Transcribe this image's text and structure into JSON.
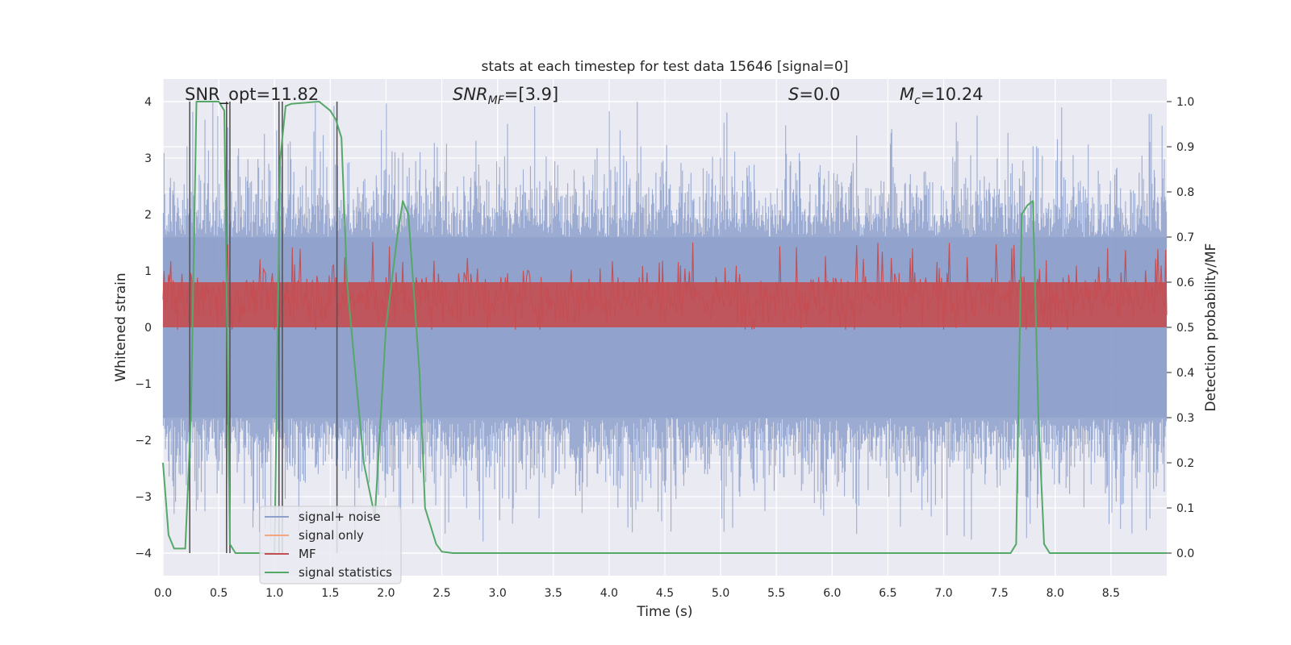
{
  "chart_data": {
    "type": "line",
    "title": "stats at each timestep for test data 15646 [signal=0]",
    "xlabel": "Time (s)",
    "ylabel_left": "Whitened strain",
    "ylabel_right": "Detection probability/MF",
    "xlim": [
      0,
      9.0
    ],
    "ylim_left": [
      -4.4,
      4.4
    ],
    "ylim_right": [
      -0.05,
      1.05
    ],
    "grid": true,
    "x_ticks": [
      "0.0",
      "0.5",
      "1.0",
      "1.5",
      "2.0",
      "2.5",
      "3.0",
      "3.5",
      "4.0",
      "4.5",
      "5.0",
      "5.5",
      "6.0",
      "6.5",
      "7.0",
      "7.5",
      "8.0",
      "8.5"
    ],
    "y_left_ticks": [
      "4",
      "3",
      "2",
      "1",
      "0",
      "−1",
      "−2",
      "−3",
      "−4"
    ],
    "y_right_ticks": [
      "1.0",
      "0.9",
      "0.8",
      "0.7",
      "0.6",
      "0.5",
      "0.4",
      "0.3",
      "0.2",
      "0.1",
      "0.0"
    ],
    "annotations": {
      "snr_opt": "SNR_opt=11.82",
      "snr_mf_main": "SNR",
      "snr_mf_sub": "MF",
      "snr_mf_value": "=[3.9]",
      "s_main": "S",
      "s_value": "=0.0",
      "mc_main": "M",
      "mc_sub": "c",
      "mc_value": "=10.24"
    },
    "legend": {
      "placement": "lower-left",
      "entries": [
        {
          "label": "signal+ noise",
          "color": "#8da0cb"
        },
        {
          "label": "signal only",
          "color": "#f4a582"
        },
        {
          "label": "MF",
          "color": "#c44e52"
        },
        {
          "label": "signal statistics",
          "color": "#55a868"
        }
      ]
    },
    "series": [
      {
        "name": "signal+ noise",
        "axis": "left",
        "description_kind": "dense noise trace",
        "amplitude_core": 1.6,
        "amplitude_peak_max": 4.0,
        "amplitude_peak_min": -3.8
      },
      {
        "name": "MF",
        "axis": "right",
        "band_low": 0.5,
        "band_high": 0.63
      },
      {
        "name": "signal statistics",
        "axis": "right",
        "x": [
          0.0,
          0.05,
          0.1,
          0.2,
          0.25,
          0.3,
          0.5,
          0.55,
          0.6,
          0.65,
          1.0,
          1.05,
          1.1,
          1.15,
          1.4,
          1.5,
          1.55,
          1.6,
          1.65,
          1.8,
          1.9,
          2.0,
          2.1,
          2.15,
          2.2,
          2.3,
          2.35,
          2.45,
          2.5,
          2.6,
          2.7,
          7.6,
          7.65,
          7.7,
          7.75,
          7.8,
          7.85,
          7.9,
          7.95,
          9.0
        ],
        "values": [
          0.2,
          0.04,
          0.01,
          0.01,
          0.3,
          1.0,
          1.0,
          0.98,
          0.02,
          0.0,
          0.0,
          0.87,
          0.99,
          0.995,
          1.0,
          0.98,
          0.96,
          0.92,
          0.6,
          0.2,
          0.08,
          0.5,
          0.7,
          0.78,
          0.75,
          0.4,
          0.1,
          0.02,
          0.003,
          0.0,
          0.0,
          0.0,
          0.02,
          0.75,
          0.77,
          0.78,
          0.3,
          0.02,
          0.0,
          0.0
        ]
      }
    ],
    "vertical_markers": {
      "color": "#555555",
      "x": [
        0.24,
        0.57,
        0.6,
        1.04,
        1.07,
        1.56
      ]
    },
    "colors": {
      "background": "#eaeaf2",
      "grid": "#ffffff",
      "noise": "#8da0cb",
      "mf": "#c44e52",
      "stat": "#55a868",
      "signal_only": "#f4a582"
    }
  }
}
